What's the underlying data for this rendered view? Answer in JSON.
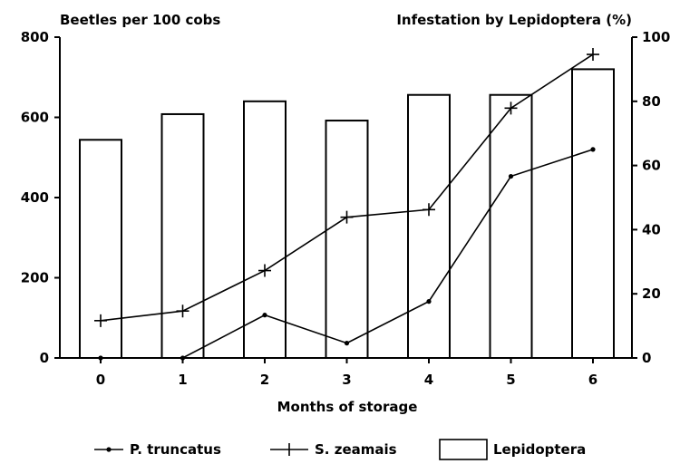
{
  "chart_data": {
    "type": "bar",
    "left_axis_title": "Beetles per 100 cobs",
    "right_axis_title": "Infestation by Lepidoptera (%)",
    "xlabel": "Months of storage",
    "categories": [
      "0",
      "1",
      "2",
      "3",
      "4",
      "5",
      "6"
    ],
    "ylim_left": [
      0,
      800
    ],
    "ylim_right": [
      0,
      100
    ],
    "yticks_left": [
      "0",
      "200",
      "400",
      "600",
      "800"
    ],
    "yticks_right": [
      "0",
      "20",
      "40",
      "60",
      "80",
      "100"
    ],
    "grid": false,
    "legend_position": "bottom",
    "series": [
      {
        "name": "Lepidoptera",
        "kind": "bar",
        "axis": "right",
        "values": [
          68,
          76,
          80,
          74,
          82,
          82,
          90
        ]
      },
      {
        "name": "P. truncatus",
        "kind": "line",
        "marker": "dot",
        "axis": "left",
        "values": [
          0,
          0,
          107,
          37,
          141,
          453,
          520
        ]
      },
      {
        "name": "S. zeamais",
        "kind": "line",
        "marker": "plus",
        "axis": "left",
        "values": [
          93,
          117,
          218,
          351,
          370,
          623,
          757
        ]
      }
    ],
    "colors": {
      "ink": "#000000",
      "background": "#ffffff"
    }
  }
}
